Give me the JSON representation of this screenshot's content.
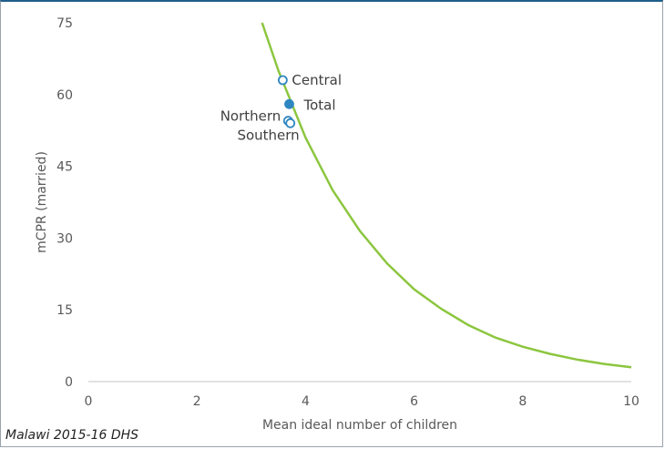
{
  "source_note": "Malawi 2015-16 DHS",
  "colors": {
    "curve": "#8cc63f",
    "marker": "#2e86c1",
    "axis": "#d9d9d9",
    "tick_text": "#595959"
  },
  "chart_data": {
    "type": "scatter",
    "title": "",
    "xlabel": "Mean ideal number of children",
    "ylabel": "mCPR (married)",
    "xlim": [
      0,
      10
    ],
    "ylim": [
      0,
      75
    ],
    "x_ticks": [
      "0",
      "2",
      "4",
      "6",
      "8",
      "10"
    ],
    "y_ticks": [
      "0",
      "15",
      "30",
      "45",
      "60",
      "75"
    ],
    "grid": false,
    "curve": {
      "x": [
        3.2,
        3.5,
        4.0,
        4.5,
        5.0,
        5.5,
        6.0,
        6.5,
        7.0,
        7.5,
        8.0,
        8.5,
        9.0,
        9.5,
        10.0
      ],
      "y": [
        75,
        65,
        51,
        40,
        31.5,
        24.7,
        19.3,
        15.2,
        11.8,
        9.2,
        7.3,
        5.8,
        4.6,
        3.7,
        3.0
      ]
    },
    "points": [
      {
        "label": "Central",
        "x": 3.58,
        "y": 63,
        "filled": false
      },
      {
        "label": "Total",
        "x": 3.7,
        "y": 58,
        "filled": true
      },
      {
        "label": "Northern",
        "x": 3.68,
        "y": 54.5,
        "filled": false
      },
      {
        "label": "Southern",
        "x": 3.72,
        "y": 54.0,
        "filled": false
      }
    ]
  }
}
